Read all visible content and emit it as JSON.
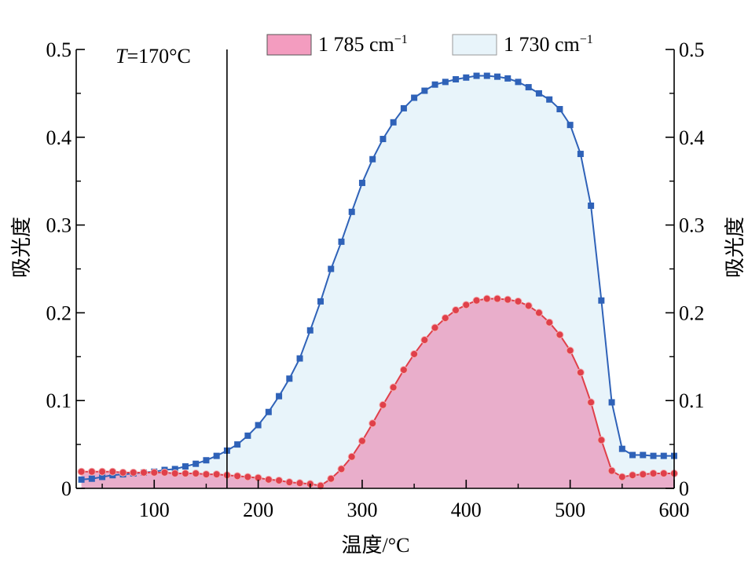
{
  "chart_data": {
    "type": "area",
    "xlabel": "温度/°C",
    "ylabel": "吸光度",
    "ylabel_right": "吸光度",
    "xlim": [
      25,
      600
    ],
    "ylim": [
      0,
      0.5
    ],
    "x_ticks": [
      "100",
      "200",
      "300",
      "400",
      "500",
      "600"
    ],
    "y_ticks": [
      "0",
      "0.1",
      "0.2",
      "0.3",
      "0.4",
      "0.5"
    ],
    "y_ticks_right": [
      "0",
      "0.1",
      "0.2",
      "0.3",
      "0.4",
      "0.5"
    ],
    "annotation": {
      "text_italic": "T",
      "text_rest": "=170°C",
      "x": 170
    },
    "legend": {
      "position": "top",
      "items": [
        {
          "label": "1 785 cm",
          "sup": "−1"
        },
        {
          "label": "1 730 cm",
          "sup": "−1"
        }
      ]
    },
    "colors": {
      "s1785_line": "#e0404a",
      "s1785_fill": "#e9aecb",
      "s1730_line": "#2f62b8",
      "s1730_fill": "#e8f4fa"
    },
    "series": [
      {
        "name": "1 785 cm−1",
        "marker": "circle",
        "x": [
          30,
          40,
          50,
          60,
          70,
          80,
          90,
          100,
          110,
          120,
          130,
          140,
          150,
          160,
          170,
          180,
          190,
          200,
          210,
          220,
          230,
          240,
          250,
          260,
          270,
          280,
          290,
          300,
          310,
          320,
          330,
          340,
          350,
          360,
          370,
          380,
          390,
          400,
          410,
          420,
          430,
          440,
          450,
          460,
          470,
          480,
          490,
          500,
          510,
          520,
          530,
          540,
          550,
          560,
          570,
          580,
          590,
          600
        ],
        "values": [
          0.019,
          0.019,
          0.019,
          0.019,
          0.018,
          0.018,
          0.018,
          0.018,
          0.018,
          0.017,
          0.017,
          0.017,
          0.016,
          0.016,
          0.015,
          0.014,
          0.013,
          0.012,
          0.01,
          0.009,
          0.007,
          0.006,
          0.005,
          0.003,
          0.011,
          0.022,
          0.036,
          0.054,
          0.074,
          0.095,
          0.115,
          0.135,
          0.153,
          0.169,
          0.183,
          0.194,
          0.203,
          0.209,
          0.214,
          0.216,
          0.216,
          0.215,
          0.213,
          0.208,
          0.2,
          0.189,
          0.175,
          0.157,
          0.132,
          0.098,
          0.055,
          0.02,
          0.013,
          0.015,
          0.016,
          0.017,
          0.017,
          0.017
        ]
      },
      {
        "name": "1 730 cm−1",
        "marker": "square",
        "x": [
          30,
          40,
          50,
          60,
          70,
          80,
          90,
          100,
          110,
          120,
          130,
          140,
          150,
          160,
          170,
          180,
          190,
          200,
          210,
          220,
          230,
          240,
          250,
          260,
          270,
          280,
          290,
          300,
          310,
          320,
          330,
          340,
          350,
          360,
          370,
          380,
          390,
          400,
          410,
          420,
          430,
          440,
          450,
          460,
          470,
          480,
          490,
          500,
          510,
          520,
          530,
          540,
          550,
          560,
          570,
          580,
          590,
          600
        ],
        "values": [
          0.01,
          0.011,
          0.013,
          0.015,
          0.016,
          0.017,
          0.018,
          0.019,
          0.021,
          0.022,
          0.025,
          0.028,
          0.032,
          0.037,
          0.043,
          0.05,
          0.06,
          0.072,
          0.087,
          0.105,
          0.125,
          0.148,
          0.18,
          0.213,
          0.25,
          0.281,
          0.315,
          0.348,
          0.375,
          0.398,
          0.417,
          0.433,
          0.445,
          0.453,
          0.46,
          0.463,
          0.466,
          0.468,
          0.47,
          0.47,
          0.469,
          0.467,
          0.463,
          0.457,
          0.45,
          0.443,
          0.432,
          0.414,
          0.381,
          0.322,
          0.214,
          0.098,
          0.045,
          0.038,
          0.038,
          0.037,
          0.037,
          0.037
        ]
      }
    ]
  }
}
